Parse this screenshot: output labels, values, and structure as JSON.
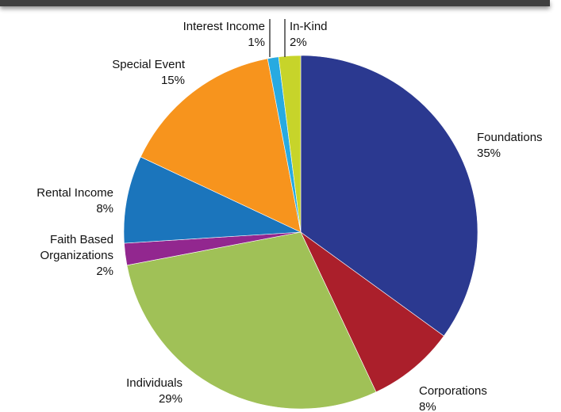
{
  "chart_data": {
    "type": "pie",
    "title": "",
    "start": "12 o'clock",
    "direction": "clockwise",
    "slices": [
      {
        "label": "Foundations",
        "value": 35,
        "value_label": "35%",
        "color": "#2b3990"
      },
      {
        "label": "Corporations",
        "value": 8,
        "value_label": "8%",
        "color": "#ab1f2b"
      },
      {
        "label": "Individuals",
        "value": 29,
        "value_label": "29%",
        "color": "#a0c157"
      },
      {
        "label": "Faith Based Organizations",
        "label_lines": [
          "Faith Based",
          "Organizations"
        ],
        "value": 2,
        "value_label": "2%",
        "color": "#92278f"
      },
      {
        "label": "Rental Income",
        "value": 8,
        "value_label": "8%",
        "color": "#1b75bc"
      },
      {
        "label": "Special Event",
        "value": 15,
        "value_label": "15%",
        "color": "#f7941d"
      },
      {
        "label": "Interest Income",
        "value": 1,
        "value_label": "1%",
        "color": "#27aae1"
      },
      {
        "label": "In-Kind",
        "value": 2,
        "value_label": "2%",
        "color": "#c7d42a"
      }
    ]
  }
}
